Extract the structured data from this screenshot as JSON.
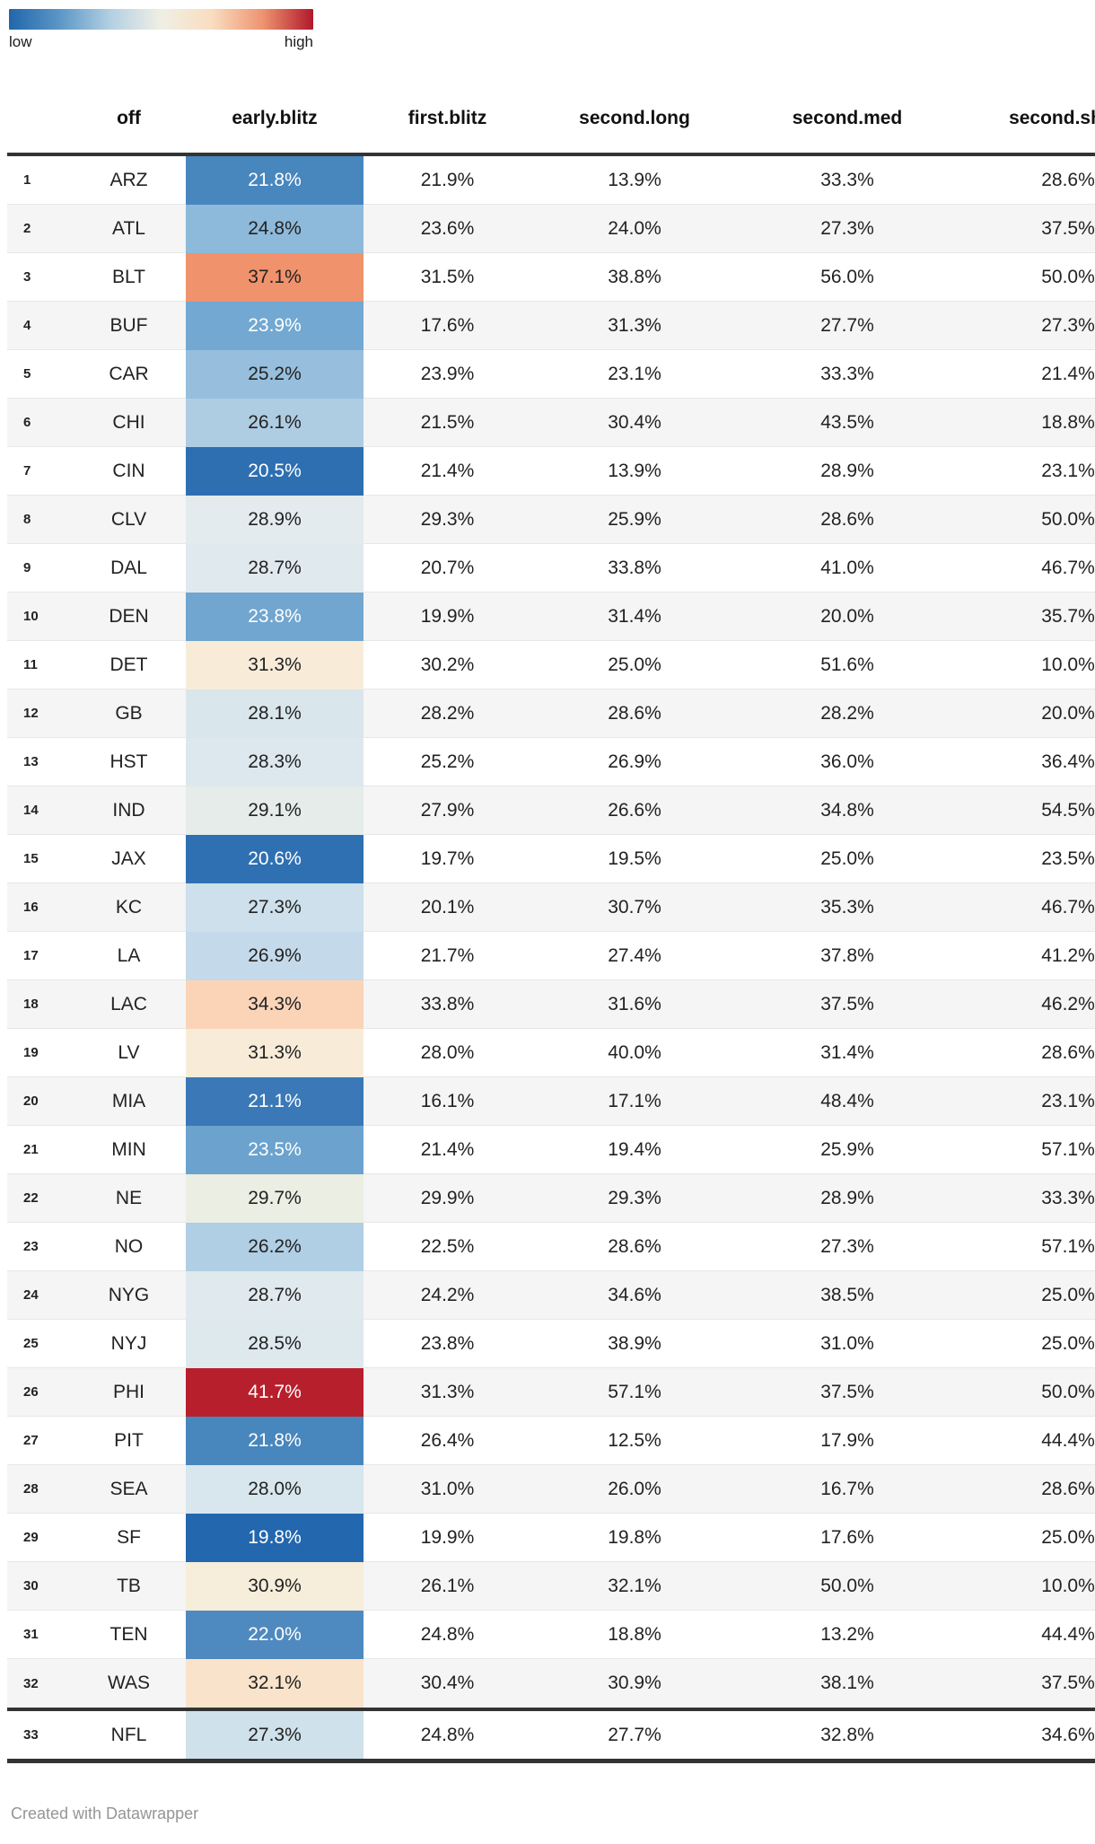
{
  "legend": {
    "low_label": "low",
    "high_label": "high",
    "gradient": [
      "#2166ac",
      "#5b97c6",
      "#b3d0e3",
      "#f0efe4",
      "#f9ddc0",
      "#ee9471",
      "#b2182b"
    ]
  },
  "table": {
    "columns": [
      "off",
      "early.blitz",
      "first.blitz",
      "second.long",
      "second.med",
      "second.short"
    ],
    "rows": [
      {
        "rank": "1",
        "team": "ARZ",
        "early": "21.8%",
        "bg": "#4886be",
        "fg": "#ffffff",
        "cells": [
          "21.9%",
          "13.9%",
          "33.3%",
          "28.6%"
        ]
      },
      {
        "rank": "2",
        "team": "ATL",
        "early": "24.8%",
        "bg": "#8db9da",
        "fg": "#222222",
        "cells": [
          "23.6%",
          "24.0%",
          "27.3%",
          "37.5%"
        ]
      },
      {
        "rank": "3",
        "team": "BLT",
        "early": "37.1%",
        "bg": "#f0926c",
        "fg": "#222222",
        "cells": [
          "31.5%",
          "38.8%",
          "56.0%",
          "50.0%"
        ]
      },
      {
        "rank": "4",
        "team": "BUF",
        "early": "23.9%",
        "bg": "#72a8d1",
        "fg": "#ffffff",
        "cells": [
          "17.6%",
          "31.3%",
          "27.7%",
          "27.3%"
        ]
      },
      {
        "rank": "5",
        "team": "CAR",
        "early": "25.2%",
        "bg": "#97bfdd",
        "fg": "#222222",
        "cells": [
          "23.9%",
          "23.1%",
          "33.3%",
          "21.4%"
        ]
      },
      {
        "rank": "6",
        "team": "CHI",
        "early": "26.1%",
        "bg": "#aecde3",
        "fg": "#222222",
        "cells": [
          "21.5%",
          "30.4%",
          "43.5%",
          "18.8%"
        ]
      },
      {
        "rank": "7",
        "team": "CIN",
        "early": "20.5%",
        "bg": "#2e6fb2",
        "fg": "#ffffff",
        "cells": [
          "21.4%",
          "13.9%",
          "28.9%",
          "23.1%"
        ]
      },
      {
        "rank": "8",
        "team": "CLV",
        "early": "28.9%",
        "bg": "#e3ebee",
        "fg": "#222222",
        "cells": [
          "29.3%",
          "25.9%",
          "28.6%",
          "50.0%"
        ]
      },
      {
        "rank": "9",
        "team": "DAL",
        "early": "28.7%",
        "bg": "#e0e9ed",
        "fg": "#222222",
        "cells": [
          "20.7%",
          "33.8%",
          "41.0%",
          "46.7%"
        ]
      },
      {
        "rank": "10",
        "team": "DEN",
        "early": "23.8%",
        "bg": "#70a6d0",
        "fg": "#ffffff",
        "cells": [
          "19.9%",
          "31.4%",
          "20.0%",
          "35.7%"
        ]
      },
      {
        "rank": "11",
        "team": "DET",
        "early": "31.3%",
        "bg": "#f8ecd9",
        "fg": "#222222",
        "cells": [
          "30.2%",
          "25.0%",
          "51.6%",
          "10.0%"
        ]
      },
      {
        "rank": "12",
        "team": "GB",
        "early": "28.1%",
        "bg": "#d9e7ed",
        "fg": "#222222",
        "cells": [
          "28.2%",
          "28.6%",
          "28.2%",
          "20.0%"
        ]
      },
      {
        "rank": "13",
        "team": "HST",
        "early": "28.3%",
        "bg": "#dce8ee",
        "fg": "#222222",
        "cells": [
          "25.2%",
          "26.9%",
          "36.0%",
          "36.4%"
        ]
      },
      {
        "rank": "14",
        "team": "IND",
        "early": "29.1%",
        "bg": "#e6ece9",
        "fg": "#222222",
        "cells": [
          "27.9%",
          "26.6%",
          "34.8%",
          "54.5%"
        ]
      },
      {
        "rank": "15",
        "team": "JAX",
        "early": "20.6%",
        "bg": "#2f70b2",
        "fg": "#ffffff",
        "cells": [
          "19.7%",
          "19.5%",
          "25.0%",
          "23.5%"
        ]
      },
      {
        "rank": "16",
        "team": "KC",
        "early": "27.3%",
        "bg": "#cde0eb",
        "fg": "#222222",
        "cells": [
          "20.1%",
          "30.7%",
          "35.3%",
          "46.7%"
        ]
      },
      {
        "rank": "17",
        "team": "LA",
        "early": "26.9%",
        "bg": "#c4daea",
        "fg": "#222222",
        "cells": [
          "21.7%",
          "27.4%",
          "37.8%",
          "41.2%"
        ]
      },
      {
        "rank": "18",
        "team": "LAC",
        "early": "34.3%",
        "bg": "#fbd4b8",
        "fg": "#222222",
        "cells": [
          "33.8%",
          "31.6%",
          "37.5%",
          "46.2%"
        ]
      },
      {
        "rank": "19",
        "team": "LV",
        "early": "31.3%",
        "bg": "#f8ecd9",
        "fg": "#222222",
        "cells": [
          "28.0%",
          "40.0%",
          "31.4%",
          "28.6%"
        ]
      },
      {
        "rank": "20",
        "team": "MIA",
        "early": "21.1%",
        "bg": "#3a78b7",
        "fg": "#ffffff",
        "cells": [
          "16.1%",
          "17.1%",
          "48.4%",
          "23.1%"
        ]
      },
      {
        "rank": "21",
        "team": "MIN",
        "early": "23.5%",
        "bg": "#6ba3ce",
        "fg": "#ffffff",
        "cells": [
          "21.4%",
          "19.4%",
          "25.9%",
          "57.1%"
        ]
      },
      {
        "rank": "22",
        "team": "NE",
        "early": "29.7%",
        "bg": "#ebeee2",
        "fg": "#222222",
        "cells": [
          "29.9%",
          "29.3%",
          "28.9%",
          "33.3%"
        ]
      },
      {
        "rank": "23",
        "team": "NO",
        "early": "26.2%",
        "bg": "#b0cee4",
        "fg": "#222222",
        "cells": [
          "22.5%",
          "28.6%",
          "27.3%",
          "57.1%"
        ]
      },
      {
        "rank": "24",
        "team": "NYG",
        "early": "28.7%",
        "bg": "#e0e9ed",
        "fg": "#222222",
        "cells": [
          "24.2%",
          "34.6%",
          "38.5%",
          "25.0%"
        ]
      },
      {
        "rank": "25",
        "team": "NYJ",
        "early": "28.5%",
        "bg": "#dee9ee",
        "fg": "#222222",
        "cells": [
          "23.8%",
          "38.9%",
          "31.0%",
          "25.0%"
        ]
      },
      {
        "rank": "26",
        "team": "PHI",
        "early": "41.7%",
        "bg": "#b81f2d",
        "fg": "#ffffff",
        "cells": [
          "31.3%",
          "57.1%",
          "37.5%",
          "50.0%"
        ]
      },
      {
        "rank": "27",
        "team": "PIT",
        "early": "21.8%",
        "bg": "#4886be",
        "fg": "#ffffff",
        "cells": [
          "26.4%",
          "12.5%",
          "17.9%",
          "44.4%"
        ]
      },
      {
        "rank": "28",
        "team": "SEA",
        "early": "28.0%",
        "bg": "#d8e6ed",
        "fg": "#222222",
        "cells": [
          "31.0%",
          "26.0%",
          "16.7%",
          "28.6%"
        ]
      },
      {
        "rank": "29",
        "team": "SF",
        "early": "19.8%",
        "bg": "#2367ae",
        "fg": "#ffffff",
        "cells": [
          "19.9%",
          "19.8%",
          "17.6%",
          "25.0%"
        ]
      },
      {
        "rank": "30",
        "team": "TB",
        "early": "30.9%",
        "bg": "#f6edda",
        "fg": "#222222",
        "cells": [
          "26.1%",
          "32.1%",
          "50.0%",
          "10.0%"
        ]
      },
      {
        "rank": "31",
        "team": "TEN",
        "early": "22.0%",
        "bg": "#4e8ac0",
        "fg": "#ffffff",
        "cells": [
          "24.8%",
          "18.8%",
          "13.2%",
          "44.4%"
        ]
      },
      {
        "rank": "32",
        "team": "WAS",
        "early": "32.1%",
        "bg": "#f9e3ca",
        "fg": "#222222",
        "cells": [
          "30.4%",
          "30.9%",
          "38.1%",
          "37.5%"
        ]
      },
      {
        "rank": "33",
        "team": "NFL",
        "early": "27.3%",
        "bg": "#cfe1ea",
        "fg": "#222222",
        "cells": [
          "24.8%",
          "27.7%",
          "32.8%",
          "34.6%"
        ]
      }
    ]
  },
  "footer": {
    "credit": "Created with Datawrapper"
  },
  "chart_data": {
    "type": "table",
    "title": "",
    "columns": [
      "off",
      "early.blitz",
      "first.blitz",
      "second.long",
      "second.med",
      "second.short"
    ],
    "heatmap_column": "early.blitz",
    "legend": {
      "low": "low",
      "high": "high"
    },
    "rows": [
      [
        "ARZ",
        21.8,
        21.9,
        13.9,
        33.3,
        28.6
      ],
      [
        "ATL",
        24.8,
        23.6,
        24.0,
        27.3,
        37.5
      ],
      [
        "BLT",
        37.1,
        31.5,
        38.8,
        56.0,
        50.0
      ],
      [
        "BUF",
        23.9,
        17.6,
        31.3,
        27.7,
        27.3
      ],
      [
        "CAR",
        25.2,
        23.9,
        23.1,
        33.3,
        21.4
      ],
      [
        "CHI",
        26.1,
        21.5,
        30.4,
        43.5,
        18.8
      ],
      [
        "CIN",
        20.5,
        21.4,
        13.9,
        28.9,
        23.1
      ],
      [
        "CLV",
        28.9,
        29.3,
        25.9,
        28.6,
        50.0
      ],
      [
        "DAL",
        28.7,
        20.7,
        33.8,
        41.0,
        46.7
      ],
      [
        "DEN",
        23.8,
        19.9,
        31.4,
        20.0,
        35.7
      ],
      [
        "DET",
        31.3,
        30.2,
        25.0,
        51.6,
        10.0
      ],
      [
        "GB",
        28.1,
        28.2,
        28.6,
        28.2,
        20.0
      ],
      [
        "HST",
        28.3,
        25.2,
        26.9,
        36.0,
        36.4
      ],
      [
        "IND",
        29.1,
        27.9,
        26.6,
        34.8,
        54.5
      ],
      [
        "JAX",
        20.6,
        19.7,
        19.5,
        25.0,
        23.5
      ],
      [
        "KC",
        27.3,
        20.1,
        30.7,
        35.3,
        46.7
      ],
      [
        "LA",
        26.9,
        21.7,
        27.4,
        37.8,
        41.2
      ],
      [
        "LAC",
        34.3,
        33.8,
        31.6,
        37.5,
        46.2
      ],
      [
        "LV",
        31.3,
        28.0,
        40.0,
        31.4,
        28.6
      ],
      [
        "MIA",
        21.1,
        16.1,
        17.1,
        48.4,
        23.1
      ],
      [
        "MIN",
        23.5,
        21.4,
        19.4,
        25.9,
        57.1
      ],
      [
        "NE",
        29.7,
        29.9,
        29.3,
        28.9,
        33.3
      ],
      [
        "NO",
        26.2,
        22.5,
        28.6,
        27.3,
        57.1
      ],
      [
        "NYG",
        28.7,
        24.2,
        34.6,
        38.5,
        25.0
      ],
      [
        "NYJ",
        28.5,
        23.8,
        38.9,
        31.0,
        25.0
      ],
      [
        "PHI",
        41.7,
        31.3,
        57.1,
        37.5,
        50.0
      ],
      [
        "PIT",
        21.8,
        26.4,
        12.5,
        17.9,
        44.4
      ],
      [
        "SEA",
        28.0,
        31.0,
        26.0,
        16.7,
        28.6
      ],
      [
        "SF",
        19.8,
        19.9,
        19.8,
        17.6,
        25.0
      ],
      [
        "TB",
        30.9,
        26.1,
        32.1,
        50.0,
        10.0
      ],
      [
        "TEN",
        22.0,
        24.8,
        18.8,
        13.2,
        44.4
      ],
      [
        "WAS",
        32.1,
        30.4,
        30.9,
        38.1,
        37.5
      ],
      [
        "NFL",
        27.3,
        24.8,
        27.7,
        32.8,
        34.6
      ]
    ]
  }
}
